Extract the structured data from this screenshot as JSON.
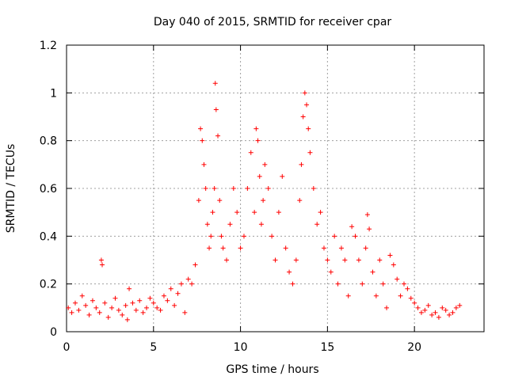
{
  "chart_data": {
    "type": "scatter",
    "title": "Day 040 of 2015, SRMTID for receiver cpar",
    "xlabel": "GPS time / hours",
    "ylabel": "SRMTID / TECUs",
    "xlim": [
      0,
      24
    ],
    "ylim": [
      0,
      1.2
    ],
    "xticks": [
      "0",
      "5",
      "10",
      "15",
      "20"
    ],
    "xtick_values": [
      0,
      5,
      10,
      15,
      20
    ],
    "yticks": [
      "0",
      "0.2",
      "0.4",
      "0.6",
      "0.8",
      "1",
      "1.2"
    ],
    "ytick_values": [
      0,
      0.2,
      0.4,
      0.6,
      0.8,
      1.0,
      1.2
    ],
    "grid": true,
    "marker": "+",
    "series": [
      {
        "name": "SRMTID",
        "color": "#ff0000",
        "x": [
          0.1,
          0.3,
          0.5,
          0.7,
          0.9,
          1.1,
          1.3,
          1.5,
          1.7,
          1.9,
          2.0,
          2.05,
          2.2,
          2.4,
          2.6,
          2.8,
          3.0,
          3.2,
          3.4,
          3.5,
          3.6,
          3.8,
          4.0,
          4.2,
          4.4,
          4.6,
          4.8,
          5.0,
          5.2,
          5.4,
          5.6,
          5.8,
          6.0,
          6.2,
          6.4,
          6.6,
          6.8,
          7.0,
          7.2,
          7.4,
          7.6,
          7.7,
          7.8,
          7.9,
          8.0,
          8.1,
          8.2,
          8.3,
          8.4,
          8.5,
          8.55,
          8.6,
          8.7,
          8.8,
          8.9,
          9.0,
          9.2,
          9.4,
          9.6,
          9.8,
          10.0,
          10.2,
          10.4,
          10.6,
          10.8,
          10.9,
          11.0,
          11.1,
          11.2,
          11.3,
          11.4,
          11.6,
          11.8,
          12.0,
          12.2,
          12.4,
          12.6,
          12.8,
          13.0,
          13.2,
          13.4,
          13.5,
          13.6,
          13.7,
          13.8,
          13.9,
          14.0,
          14.2,
          14.4,
          14.6,
          14.8,
          15.0,
          15.2,
          15.4,
          15.6,
          15.8,
          16.0,
          16.2,
          16.4,
          16.6,
          16.8,
          17.0,
          17.2,
          17.3,
          17.4,
          17.6,
          17.8,
          18.0,
          18.2,
          18.4,
          18.6,
          18.8,
          19.0,
          19.2,
          19.4,
          19.6,
          19.8,
          20.0,
          20.2,
          20.4,
          20.6,
          20.8,
          21.0,
          21.2,
          21.4,
          21.6,
          21.8,
          22.0,
          22.2,
          22.4,
          22.6
        ],
        "y": [
          0.1,
          0.08,
          0.12,
          0.09,
          0.15,
          0.11,
          0.07,
          0.13,
          0.1,
          0.08,
          0.3,
          0.28,
          0.12,
          0.06,
          0.1,
          0.14,
          0.09,
          0.07,
          0.11,
          0.05,
          0.18,
          0.12,
          0.09,
          0.13,
          0.08,
          0.1,
          0.14,
          0.12,
          0.1,
          0.09,
          0.15,
          0.13,
          0.18,
          0.11,
          0.16,
          0.2,
          0.08,
          0.22,
          0.2,
          0.28,
          0.55,
          0.85,
          0.8,
          0.7,
          0.6,
          0.45,
          0.35,
          0.4,
          0.5,
          0.6,
          1.04,
          0.93,
          0.82,
          0.55,
          0.4,
          0.35,
          0.3,
          0.45,
          0.6,
          0.5,
          0.35,
          0.4,
          0.6,
          0.75,
          0.5,
          0.85,
          0.8,
          0.65,
          0.45,
          0.55,
          0.7,
          0.6,
          0.4,
          0.3,
          0.5,
          0.65,
          0.35,
          0.25,
          0.2,
          0.3,
          0.55,
          0.7,
          0.9,
          1.0,
          0.95,
          0.85,
          0.75,
          0.6,
          0.45,
          0.5,
          0.35,
          0.3,
          0.25,
          0.4,
          0.2,
          0.35,
          0.3,
          0.15,
          0.44,
          0.4,
          0.3,
          0.2,
          0.35,
          0.49,
          0.43,
          0.25,
          0.15,
          0.3,
          0.2,
          0.1,
          0.32,
          0.28,
          0.22,
          0.15,
          0.2,
          0.18,
          0.14,
          0.12,
          0.1,
          0.08,
          0.09,
          0.11,
          0.07,
          0.08,
          0.06,
          0.1,
          0.09,
          0.07,
          0.08,
          0.1,
          0.11
        ]
      }
    ]
  }
}
